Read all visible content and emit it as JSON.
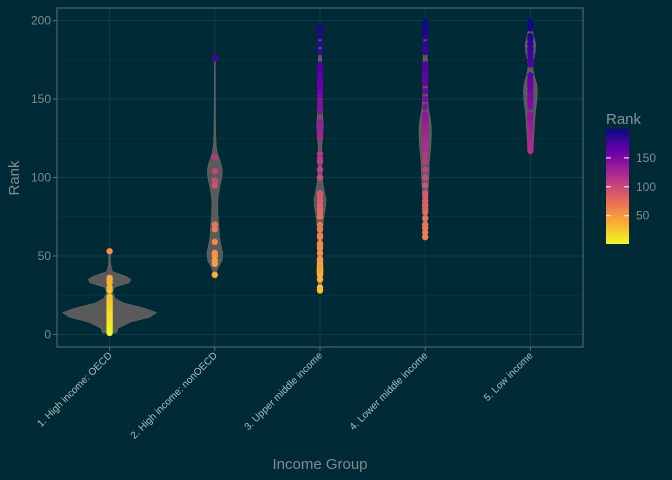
{
  "chart_data": {
    "type": "violin",
    "title": "",
    "xlabel": "Income Group",
    "ylabel": "Rank",
    "ylim": [
      -8,
      208
    ],
    "yticks": [
      0,
      50,
      100,
      150,
      200
    ],
    "grid": true,
    "legend": {
      "title": "Rank",
      "position": "right",
      "ticks": [
        50,
        100,
        150
      ],
      "range": [
        1,
        200
      ],
      "colors": [
        "#f0f921",
        "#fca636",
        "#e16462",
        "#b12a90",
        "#6a00a8",
        "#0d0887"
      ]
    },
    "colors": {
      "background": "#002b36",
      "panel_border": "#586e75",
      "grid": "#0e3c47",
      "violin_fill": "#5a5a5a",
      "text": "#7f8c8d"
    },
    "categories": [
      "1. High income: OECD",
      "2. High income: nonOECD",
      "3. Upper middle income",
      "4. Lower middle income",
      "5. Low income"
    ],
    "violins": [
      {
        "group": "1. High income: OECD",
        "min": 1,
        "max": 53,
        "profile": [
          [
            1,
            0.15
          ],
          [
            4,
            0.18
          ],
          [
            8,
            0.45
          ],
          [
            11,
            0.85
          ],
          [
            14,
            1.0
          ],
          [
            17,
            0.7
          ],
          [
            20,
            0.3
          ],
          [
            23,
            0.12
          ],
          [
            27,
            0.06
          ],
          [
            30,
            0.1
          ],
          [
            33,
            0.42
          ],
          [
            35,
            0.45
          ],
          [
            37,
            0.35
          ],
          [
            40,
            0.06
          ],
          [
            45,
            0.02
          ],
          [
            53,
            0.015
          ]
        ],
        "points": [
          1,
          2,
          3,
          4,
          5,
          6,
          7,
          8,
          9,
          10,
          11,
          12,
          13,
          14,
          15,
          16,
          17,
          18,
          19,
          20,
          21,
          22,
          23,
          24,
          28,
          30,
          33,
          35,
          36,
          53
        ]
      },
      {
        "group": "2. High income: nonOECD",
        "min": 38,
        "max": 176,
        "profile": [
          [
            38,
            0.02
          ],
          [
            42,
            0.06
          ],
          [
            47,
            0.15
          ],
          [
            52,
            0.17
          ],
          [
            57,
            0.13
          ],
          [
            62,
            0.1
          ],
          [
            68,
            0.09
          ],
          [
            75,
            0.07
          ],
          [
            82,
            0.06
          ],
          [
            88,
            0.07
          ],
          [
            95,
            0.11
          ],
          [
            100,
            0.15
          ],
          [
            105,
            0.16
          ],
          [
            110,
            0.12
          ],
          [
            115,
            0.06
          ],
          [
            120,
            0.03
          ],
          [
            130,
            0.018
          ],
          [
            145,
            0.012
          ],
          [
            160,
            0.01
          ],
          [
            176,
            0.008
          ]
        ],
        "points": [
          38,
          45,
          47,
          50,
          52,
          59,
          67,
          70,
          95,
          98,
          104,
          113,
          176
        ]
      },
      {
        "group": "3. Upper middle income",
        "min": 28,
        "max": 196,
        "profile": [
          [
            28,
            0.02
          ],
          [
            35,
            0.05
          ],
          [
            40,
            0.07
          ],
          [
            45,
            0.06
          ],
          [
            52,
            0.05
          ],
          [
            58,
            0.04
          ],
          [
            65,
            0.05
          ],
          [
            72,
            0.07
          ],
          [
            78,
            0.1
          ],
          [
            82,
            0.12
          ],
          [
            86,
            0.13
          ],
          [
            90,
            0.1
          ],
          [
            95,
            0.07
          ],
          [
            102,
            0.045
          ],
          [
            110,
            0.035
          ],
          [
            120,
            0.04
          ],
          [
            128,
            0.06
          ],
          [
            133,
            0.07
          ],
          [
            140,
            0.055
          ],
          [
            150,
            0.04
          ],
          [
            158,
            0.035
          ],
          [
            165,
            0.04
          ],
          [
            170,
            0.045
          ],
          [
            175,
            0.035
          ],
          [
            182,
            0.025
          ],
          [
            190,
            0.03
          ],
          [
            196,
            0.02
          ]
        ],
        "points": [
          28,
          30,
          35,
          38,
          40,
          41,
          42,
          43,
          44,
          45,
          46,
          47,
          48,
          52,
          55,
          57,
          58,
          62,
          63,
          67,
          70,
          75,
          78,
          80,
          82,
          85,
          87,
          88,
          90,
          100,
          105,
          110,
          112,
          115,
          125,
          128,
          130,
          132,
          135,
          142,
          145,
          148,
          152,
          155,
          158,
          160,
          162,
          165,
          168,
          170,
          172,
          180,
          185,
          190,
          193,
          195
        ]
      },
      {
        "group": "4. Lower middle income",
        "min": 62,
        "max": 199,
        "profile": [
          [
            62,
            0.02
          ],
          [
            66,
            0.03
          ],
          [
            70,
            0.04
          ],
          [
            75,
            0.045
          ],
          [
            80,
            0.05
          ],
          [
            85,
            0.05
          ],
          [
            90,
            0.055
          ],
          [
            96,
            0.07
          ],
          [
            102,
            0.08
          ],
          [
            108,
            0.085
          ],
          [
            114,
            0.1
          ],
          [
            120,
            0.12
          ],
          [
            126,
            0.13
          ],
          [
            132,
            0.13
          ],
          [
            137,
            0.11
          ],
          [
            142,
            0.08
          ],
          [
            147,
            0.06
          ],
          [
            152,
            0.05
          ],
          [
            157,
            0.045
          ],
          [
            162,
            0.05
          ],
          [
            167,
            0.055
          ],
          [
            172,
            0.05
          ],
          [
            177,
            0.04
          ],
          [
            182,
            0.035
          ],
          [
            187,
            0.03
          ],
          [
            192,
            0.03
          ],
          [
            196,
            0.025
          ],
          [
            199,
            0.015
          ]
        ],
        "points": [
          62,
          65,
          68,
          70,
          74,
          78,
          80,
          82,
          83,
          85,
          88,
          90,
          95,
          100,
          105,
          110,
          114,
          118,
          120,
          122,
          125,
          128,
          130,
          132,
          135,
          138,
          140,
          145,
          150,
          155,
          160,
          162,
          165,
          168,
          170,
          172,
          180,
          183,
          185,
          190,
          192,
          195,
          197,
          199
        ]
      },
      {
        "group": "5. Low income",
        "min": 116,
        "max": 200,
        "profile": [
          [
            116,
            0.03
          ],
          [
            120,
            0.06
          ],
          [
            125,
            0.07
          ],
          [
            130,
            0.08
          ],
          [
            135,
            0.09
          ],
          [
            140,
            0.1
          ],
          [
            145,
            0.12
          ],
          [
            150,
            0.14
          ],
          [
            155,
            0.15
          ],
          [
            160,
            0.13
          ],
          [
            165,
            0.08
          ],
          [
            170,
            0.05
          ],
          [
            175,
            0.06
          ],
          [
            180,
            0.1
          ],
          [
            185,
            0.11
          ],
          [
            190,
            0.07
          ],
          [
            195,
            0.03
          ],
          [
            200,
            0.015
          ]
        ],
        "points": [
          117,
          119,
          120,
          122,
          125,
          128,
          132,
          135,
          138,
          140,
          145,
          148,
          150,
          152,
          155,
          158,
          160,
          162,
          165,
          172,
          175,
          178,
          180,
          182,
          185,
          188,
          190,
          195,
          197,
          199
        ]
      }
    ]
  }
}
